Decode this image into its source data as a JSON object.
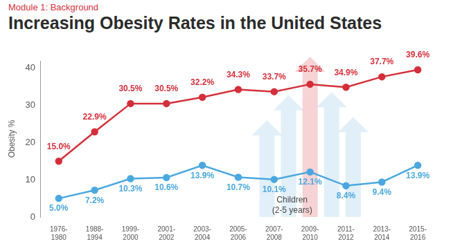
{
  "chart_data": {
    "type": "line",
    "subtitle": "Module 1: Background",
    "title": "Increasing Obesity Rates in the United States",
    "y_label": "Obesity %",
    "categories": [
      "1976-1980",
      "1988-1994",
      "1999-2000",
      "2001-2002",
      "2003-2004",
      "2005-2006",
      "2007-2008",
      "2009-2010",
      "2011-2012",
      "2013-2014",
      "2015-2016"
    ],
    "series": [
      {
        "color": "#d32f3a",
        "marker": "circle",
        "values": [
          15.0,
          22.9,
          30.5,
          30.5,
          32.2,
          34.3,
          33.7,
          35.7,
          34.9,
          37.7,
          39.6
        ],
        "value_labels": [
          "15.0%",
          "22.9%",
          "30.5%",
          "30.5%",
          "32.2%",
          "34.3%",
          "33.7%",
          "35.7%",
          "34.9%",
          "37.7%",
          "39.6%"
        ]
      },
      {
        "name": "Children (2-5 years)",
        "color": "#4aa8df",
        "marker": "circle",
        "values": [
          5.0,
          7.2,
          10.3,
          10.6,
          13.9,
          10.7,
          10.1,
          12.1,
          8.4,
          9.4,
          13.9
        ],
        "value_labels": [
          "5.0%",
          "7.2%",
          "10.3%",
          "10.6%",
          "13.9%",
          "10.7%",
          "10.1%",
          "12.1%",
          "8.4%",
          "9.4%",
          "13.9%"
        ]
      }
    ],
    "ylim": [
      0,
      42
    ],
    "yticks": [
      0,
      10,
      20,
      30,
      40
    ],
    "grid": false,
    "data_labels": true
  }
}
